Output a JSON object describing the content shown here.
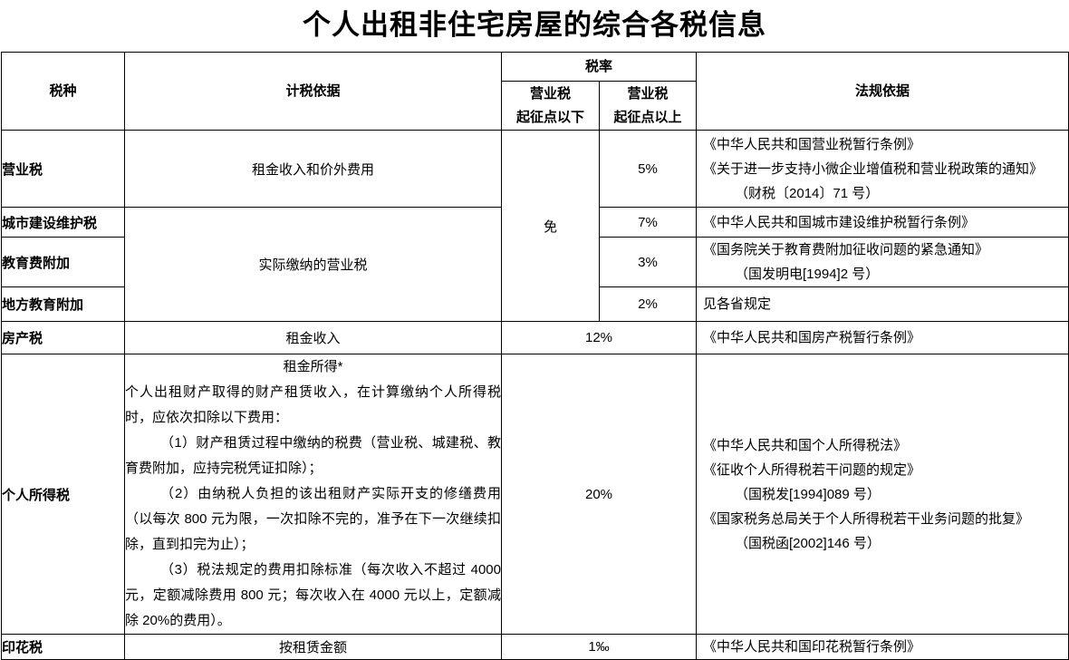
{
  "title": "个人出租非住宅房屋的综合各税信息",
  "header": {
    "tax_type": "税种",
    "tax_basis": "计税依据",
    "tax_rate": "税率",
    "rate_below_line1": "营业税",
    "rate_below_line2": "起征点以下",
    "rate_above_line1": "营业税",
    "rate_above_line2": "起征点以上",
    "legal_basis": "法规依据"
  },
  "rows": {
    "business_tax": {
      "name": "营业税",
      "basis": "租金收入和价外费用",
      "rate_below": "免",
      "rate_above": "5%",
      "legal": [
        "《中华人民共和国营业税暂行条例》",
        "《关于进一步支持小微企业增值税和营业税政策的通知》",
        "（财税〔2014〕71 号）"
      ]
    },
    "city_maintenance_tax": {
      "name": "城市建设维护税",
      "basis": "实际缴纳的营业税",
      "rate_above": "7%",
      "legal": [
        "《中华人民共和国城市建设维护税暂行条例》"
      ]
    },
    "education_surcharge": {
      "name": "教育费附加",
      "rate_above": "3%",
      "legal": [
        "《国务院关于教育费附加征收问题的紧急通知》",
        "（国发明电[1994]2 号）"
      ]
    },
    "local_education_surcharge": {
      "name": "地方教育附加",
      "rate_above": "2%",
      "legal": [
        "见各省规定"
      ]
    },
    "property_tax": {
      "name": "房产税",
      "basis": "租金收入",
      "rate": "12%",
      "legal": [
        "《中华人民共和国房产税暂行条例》"
      ]
    },
    "personal_income_tax": {
      "name": "个人所得税",
      "basis_title": "租金所得*",
      "basis_paragraphs": [
        "个人出租财产取得的财产租赁收入，在计算缴纳个人所得税时，应依次扣除以下费用：",
        "（1）财产租赁过程中缴纳的税费（营业税、城建税、教育费附加，应持完税凭证扣除）；",
        "（2）由纳税人负担的该出租财产实际开支的修缮费用（以每次 800 元为限，一次扣除不完的，准予在下一次继续扣除，直到扣完为止）；",
        "（3）税法规定的费用扣除标准（每次收入不超过 4000 元，定额减除费用 800 元；每次收入在 4000 元以上，定额减除 20%的费用）。"
      ],
      "rate": "20%",
      "legal": [
        "《中华人民共和国个人所得税法》",
        "《征收个人所得税若干问题的规定》",
        "（国税发[1994]089 号）",
        "《国家税务总局关于个人所得税若干业务问题的批复》",
        "（国税函[2002]146 号）"
      ]
    },
    "stamp_tax": {
      "name": "印花税",
      "basis": "按租赁金额",
      "rate": "1‰",
      "legal": [
        "《中华人民共和国印花税暂行条例》"
      ]
    }
  },
  "colors": {
    "background": "#ffffff",
    "border": "#000000",
    "text": "#000000"
  }
}
